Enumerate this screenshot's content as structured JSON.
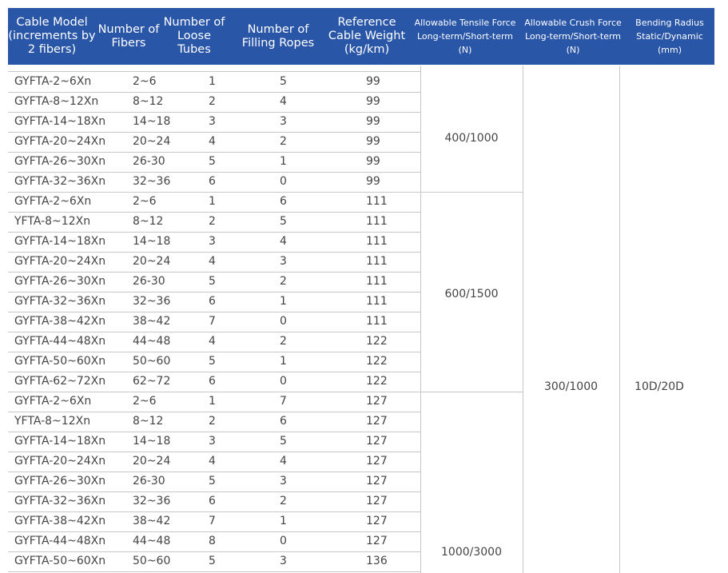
{
  "header": {
    "model": "Cable Model\n(increments by\n2 fibers)",
    "fibers": "Number of\nFibers",
    "tubes": "Number of\nLoose Tubes",
    "ropes": "Number of\nFilling Ropes",
    "weight": "Reference\nCable Weight\n(kg/km)",
    "tensile": "Allowable Tensile Force\nLong-term/Short-term\n(N)",
    "crush": "Allowable Crush Force\nLong-term/Short-term\n(N)",
    "bending": "Bending Radius\nStatic/Dynamic\n(mm)"
  },
  "rows": [
    {
      "model": "GYFTA-2~6Xn",
      "fibers": "2~6",
      "tubes": "1",
      "ropes": "5",
      "weight": "99"
    },
    {
      "model": "GYFTA-8~12Xn",
      "fibers": "8~12",
      "tubes": "2",
      "ropes": "4",
      "weight": "99"
    },
    {
      "model": "GYFTA-14~18Xn",
      "fibers": "14~18",
      "tubes": "3",
      "ropes": "3",
      "weight": "99"
    },
    {
      "model": "GYFTA-20~24Xn",
      "fibers": "20~24",
      "tubes": "4",
      "ropes": "2",
      "weight": "99"
    },
    {
      "model": "GYFTA-26~30Xn",
      "fibers": "26-30",
      "tubes": "5",
      "ropes": "1",
      "weight": "99"
    },
    {
      "model": "GYFTA-32~36Xn",
      "fibers": "32~36",
      "tubes": "6",
      "ropes": "0",
      "weight": "99"
    },
    {
      "model": "GYFTA-2~6Xn",
      "fibers": "2~6",
      "tubes": "1",
      "ropes": "6",
      "weight": "111"
    },
    {
      "model": "YFTA-8~12Xn",
      "fibers": "8~12",
      "tubes": "2",
      "ropes": "5",
      "weight": "111"
    },
    {
      "model": "GYFTA-14~18Xn",
      "fibers": "14~18",
      "tubes": "3",
      "ropes": "4",
      "weight": "111"
    },
    {
      "model": "GYFTA-20~24Xn",
      "fibers": "20~24",
      "tubes": "4",
      "ropes": "3",
      "weight": "111"
    },
    {
      "model": "GYFTA-26~30Xn",
      "fibers": "26-30",
      "tubes": "5",
      "ropes": "2",
      "weight": "111"
    },
    {
      "model": "GYFTA-32~36Xn",
      "fibers": "32~36",
      "tubes": "6",
      "ropes": "1",
      "weight": "111"
    },
    {
      "model": "GYFTA-38~42Xn",
      "fibers": "38~42",
      "tubes": "7",
      "ropes": "0",
      "weight": "111"
    },
    {
      "model": "GYFTA-44~48Xn",
      "fibers": "44~48",
      "tubes": "4",
      "ropes": "2",
      "weight": "122"
    },
    {
      "model": "GYFTA-50~60Xn",
      "fibers": "50~60",
      "tubes": "5",
      "ropes": "1",
      "weight": "122"
    },
    {
      "model": "GYFTA-62~72Xn",
      "fibers": "62~72",
      "tubes": "6",
      "ropes": "0",
      "weight": "122"
    },
    {
      "model": "GYFTA-2~6Xn",
      "fibers": "2~6",
      "tubes": "1",
      "ropes": "7",
      "weight": "127"
    },
    {
      "model": "YFTA-8~12Xn",
      "fibers": "8~12",
      "tubes": "2",
      "ropes": "6",
      "weight": "127"
    },
    {
      "model": "GYFTA-14~18Xn",
      "fibers": "14~18",
      "tubes": "3",
      "ropes": "5",
      "weight": "127"
    },
    {
      "model": "GYFTA-20~24Xn",
      "fibers": "20~24",
      "tubes": "4",
      "ropes": "4",
      "weight": "127"
    },
    {
      "model": "GYFTA-26~30Xn",
      "fibers": "26-30",
      "tubes": "5",
      "ropes": "3",
      "weight": "127"
    },
    {
      "model": "GYFTA-32~36Xn",
      "fibers": "32~36",
      "tubes": "6",
      "ropes": "2",
      "weight": "127"
    },
    {
      "model": "GYFTA-38~42Xn",
      "fibers": "38~42",
      "tubes": "7",
      "ropes": "1",
      "weight": "127"
    },
    {
      "model": "GYFTA-44~48Xn",
      "fibers": "44~48",
      "tubes": "8",
      "ropes": "0",
      "weight": "127"
    },
    {
      "model": "GYFTA-50~60Xn",
      "fibers": "50~60",
      "tubes": "5",
      "ropes": "3",
      "weight": "136"
    }
  ],
  "tensile_groups": [
    "400/1000",
    "600/1500",
    "1000/3000"
  ],
  "crush_value": "300/1000",
  "bending_value": "10D/20D",
  "colors": {
    "header_bg": "#2a56a8",
    "header_text": "#ffffff",
    "grid": "#c8c8c8",
    "text": "#444444"
  }
}
